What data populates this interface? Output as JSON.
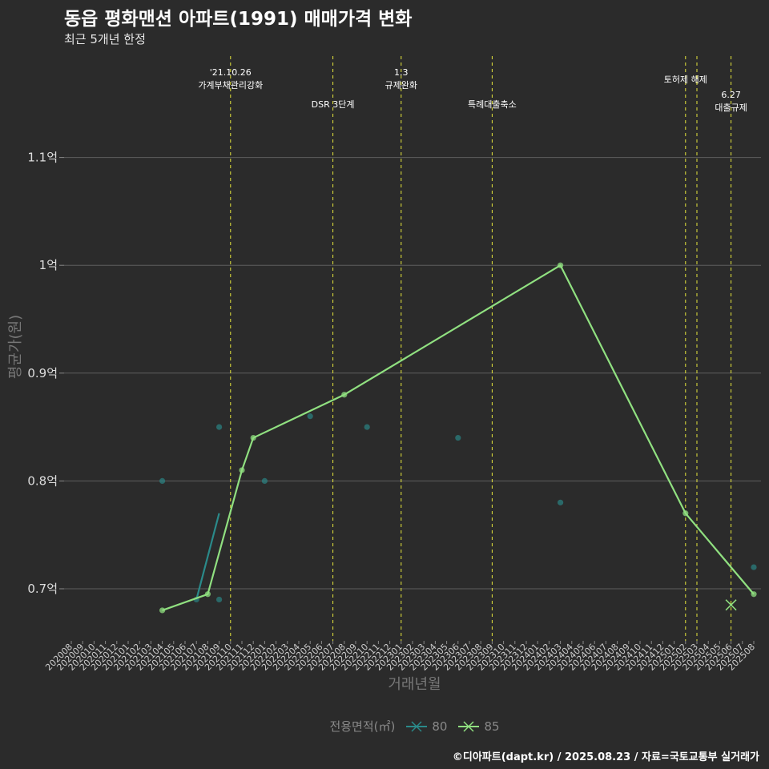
{
  "header": {
    "title": "동읍 평화맨션 아파트(1991) 매매가격 변화",
    "subtitle": "최근 5개년 한정"
  },
  "caption": "©디아파트(dapt.kr) / 2025.08.23 / 자료=국토교통부 실거래가",
  "legend": {
    "title": "전용면적(㎡)",
    "items": [
      {
        "label": "80",
        "color": "#2a8a8a"
      },
      {
        "label": "85",
        "color": "#90e080"
      }
    ]
  },
  "chart_data": {
    "type": "line",
    "title": "동읍 평화맨션 아파트(1991) 매매가격 변화",
    "xlabel": "거래년월",
    "ylabel": "평균가(원)",
    "ylim": [
      0.66,
      1.2
    ],
    "y_ticks": [
      {
        "value": 0.7,
        "label": "0.7억"
      },
      {
        "value": 0.8,
        "label": "0.8억"
      },
      {
        "value": 0.9,
        "label": "0.9억"
      },
      {
        "value": 1.0,
        "label": "1억"
      },
      {
        "value": 1.1,
        "label": "1.1억"
      }
    ],
    "categories": [
      "202008",
      "202009",
      "202010",
      "202011",
      "202012",
      "202101",
      "202102",
      "202103",
      "202104",
      "202105",
      "202106",
      "202107",
      "202108",
      "202109",
      "202110",
      "202111",
      "202112",
      "202201",
      "202202",
      "202203",
      "202204",
      "202205",
      "202206",
      "202207",
      "202208",
      "202209",
      "202210",
      "202211",
      "202212",
      "202301",
      "202302",
      "202303",
      "202304",
      "202305",
      "202306",
      "202307",
      "202308",
      "202309",
      "202310",
      "202311",
      "202312",
      "202401",
      "202402",
      "202403",
      "202404",
      "202405",
      "202406",
      "202407",
      "202408",
      "202409",
      "202410",
      "202411",
      "202412",
      "202501",
      "202502",
      "202503",
      "202504",
      "202505",
      "202506",
      "202507",
      "202508"
    ],
    "series": [
      {
        "name": "80",
        "color": "#2a8a8a",
        "line": [
          {
            "x": "202107",
            "y": 0.69
          },
          {
            "x": "202109",
            "y": 0.77
          }
        ],
        "points": [
          {
            "x": "202104",
            "y": 0.8
          },
          {
            "x": "202107",
            "y": 0.69
          },
          {
            "x": "202109",
            "y": 0.85
          },
          {
            "x": "202109",
            "y": 0.69
          },
          {
            "x": "202201",
            "y": 0.8
          },
          {
            "x": "202205",
            "y": 0.86
          },
          {
            "x": "202210",
            "y": 0.85
          },
          {
            "x": "202306",
            "y": 0.84
          },
          {
            "x": "202403",
            "y": 0.78
          },
          {
            "x": "202508",
            "y": 0.72
          }
        ]
      },
      {
        "name": "85",
        "color": "#90e080",
        "line": [
          {
            "x": "202104",
            "y": 0.68
          },
          {
            "x": "202108",
            "y": 0.695
          },
          {
            "x": "202111",
            "y": 0.81
          },
          {
            "x": "202112",
            "y": 0.84
          },
          {
            "x": "202208",
            "y": 0.88
          },
          {
            "x": "202403",
            "y": 1.0
          },
          {
            "x": "202502",
            "y": 0.77
          },
          {
            "x": "202508",
            "y": 0.695
          }
        ],
        "points": [
          {
            "x": "202104",
            "y": 0.68
          },
          {
            "x": "202108",
            "y": 0.695
          },
          {
            "x": "202111",
            "y": 0.81
          },
          {
            "x": "202112",
            "y": 0.84
          },
          {
            "x": "202208",
            "y": 0.88
          },
          {
            "x": "202403",
            "y": 1.0
          },
          {
            "x": "202502",
            "y": 0.77
          },
          {
            "x": "202508",
            "y": 0.695
          }
        ],
        "cross_marker": {
          "x": "202506",
          "y": 0.685
        }
      }
    ],
    "events": [
      {
        "x": "202110",
        "lines": [
          "'21.10.26",
          "가계부채관리강화"
        ],
        "level": 1
      },
      {
        "x": "202207",
        "lines": [
          "DSR 3단계"
        ],
        "level": 2
      },
      {
        "x": "202301",
        "lines": [
          "1.3",
          "규제완화"
        ],
        "level": 1
      },
      {
        "x": "202309",
        "lines": [
          "특례대출축소"
        ],
        "level": 2
      },
      {
        "x": "202502",
        "lines": [
          "토허제 해제"
        ],
        "level": 1
      },
      {
        "x": "202503",
        "lines": [],
        "level": 1
      },
      {
        "x": "202506",
        "lines": [
          "6.27",
          "대출규제"
        ],
        "level": 2
      }
    ]
  }
}
